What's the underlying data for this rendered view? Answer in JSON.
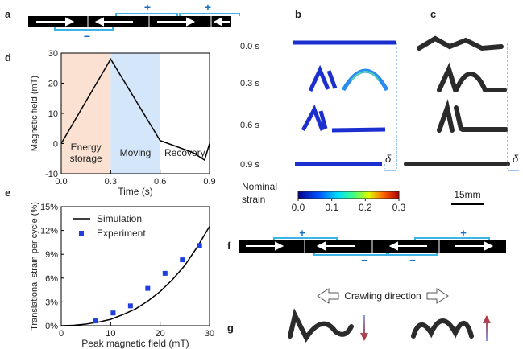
{
  "chart_data": [
    {
      "type": "line",
      "xlabel": "Time (s)",
      "ylabel": "Magnetic field (mT)",
      "xlim": [
        0,
        0.9
      ],
      "xticks": [
        {
          "value": 0,
          "label": "0.0"
        },
        {
          "value": 0.3,
          "label": "0.3"
        },
        {
          "value": 0.6,
          "label": "0.6"
        },
        {
          "value": 0.9,
          "label": "0.9"
        }
      ],
      "ylim": [
        -10,
        30
      ],
      "yticks": [
        -10,
        0,
        10,
        20,
        30
      ],
      "regions": [
        {
          "label": [
            "Energy",
            "storage"
          ],
          "start": 0,
          "end": 0.3,
          "color": "#fbe1d2"
        },
        {
          "label": [
            "Moving"
          ],
          "start": 0.3,
          "end": 0.6,
          "color": "#d4e6fa"
        },
        {
          "label": [
            "Recovery"
          ],
          "start": 0.6,
          "end": 0.9,
          "color": "#ffffff"
        }
      ],
      "series": [
        {
          "color": "#000000",
          "x": [
            0,
            0.3,
            0.6,
            0.7,
            0.8,
            0.87,
            0.9
          ],
          "values": [
            0,
            28,
            1,
            -1,
            -3,
            -5.5,
            0
          ]
        }
      ]
    },
    {
      "type": "line",
      "xlabel": "Peak magnetic field (mT)",
      "ylabel": "Translational strain per cycle (%)",
      "xlim": [
        0,
        30
      ],
      "xticks": [
        0,
        10,
        20,
        30
      ],
      "ylim": [
        0,
        15
      ],
      "yticks": [
        {
          "value": 0,
          "label": "0%"
        },
        {
          "value": 3,
          "label": "3%"
        },
        {
          "value": 6,
          "label": "6%"
        },
        {
          "value": 9,
          "label": "9%"
        },
        {
          "value": 12,
          "label": "12%"
        },
        {
          "value": 15,
          "label": "15%"
        }
      ],
      "legend": "upper left",
      "series": [
        {
          "name": "Simulation",
          "type": "line",
          "color": "#000000",
          "x": [
            0,
            2.5,
            5,
            7.5,
            10,
            12.5,
            15,
            17.5,
            20,
            22.5,
            25,
            27.5,
            30
          ],
          "values": [
            0,
            0.05,
            0.2,
            0.45,
            0.8,
            1.4,
            2.1,
            3.1,
            4.3,
            5.8,
            7.6,
            9.9,
            12.5
          ]
        },
        {
          "name": "Experiment",
          "type": "scatter",
          "color": "#1f3fe0",
          "x": [
            7,
            10.5,
            14,
            17.5,
            21,
            24.5,
            28
          ],
          "values": [
            0.6,
            1.6,
            2.5,
            4.7,
            6.6,
            8.3,
            10.1
          ]
        }
      ]
    }
  ],
  "figure": {
    "panels": [
      "a",
      "b",
      "c",
      "d",
      "e",
      "f",
      "g"
    ],
    "panel_a_signs": [
      "+",
      "+",
      "−"
    ],
    "panel_f_signs": [
      "+",
      "+",
      "−",
      "−"
    ],
    "times": [
      "0.0 s",
      "0.3 s",
      "0.6 s",
      "0.9 s"
    ],
    "delta": [
      "δ",
      "δ"
    ],
    "colorbar": {
      "title": [
        "Nominal",
        "strain"
      ],
      "lim": [
        0,
        0.3
      ],
      "ticks": [
        {
          "value": 0,
          "label": "0.0"
        },
        {
          "value": 0.1,
          "label": "0.1"
        },
        {
          "value": 0.2,
          "label": "0.2"
        },
        {
          "value": 0.3,
          "label": "0.3"
        }
      ]
    },
    "scale_bar": "15mm",
    "crawling": "Crawling direction"
  }
}
